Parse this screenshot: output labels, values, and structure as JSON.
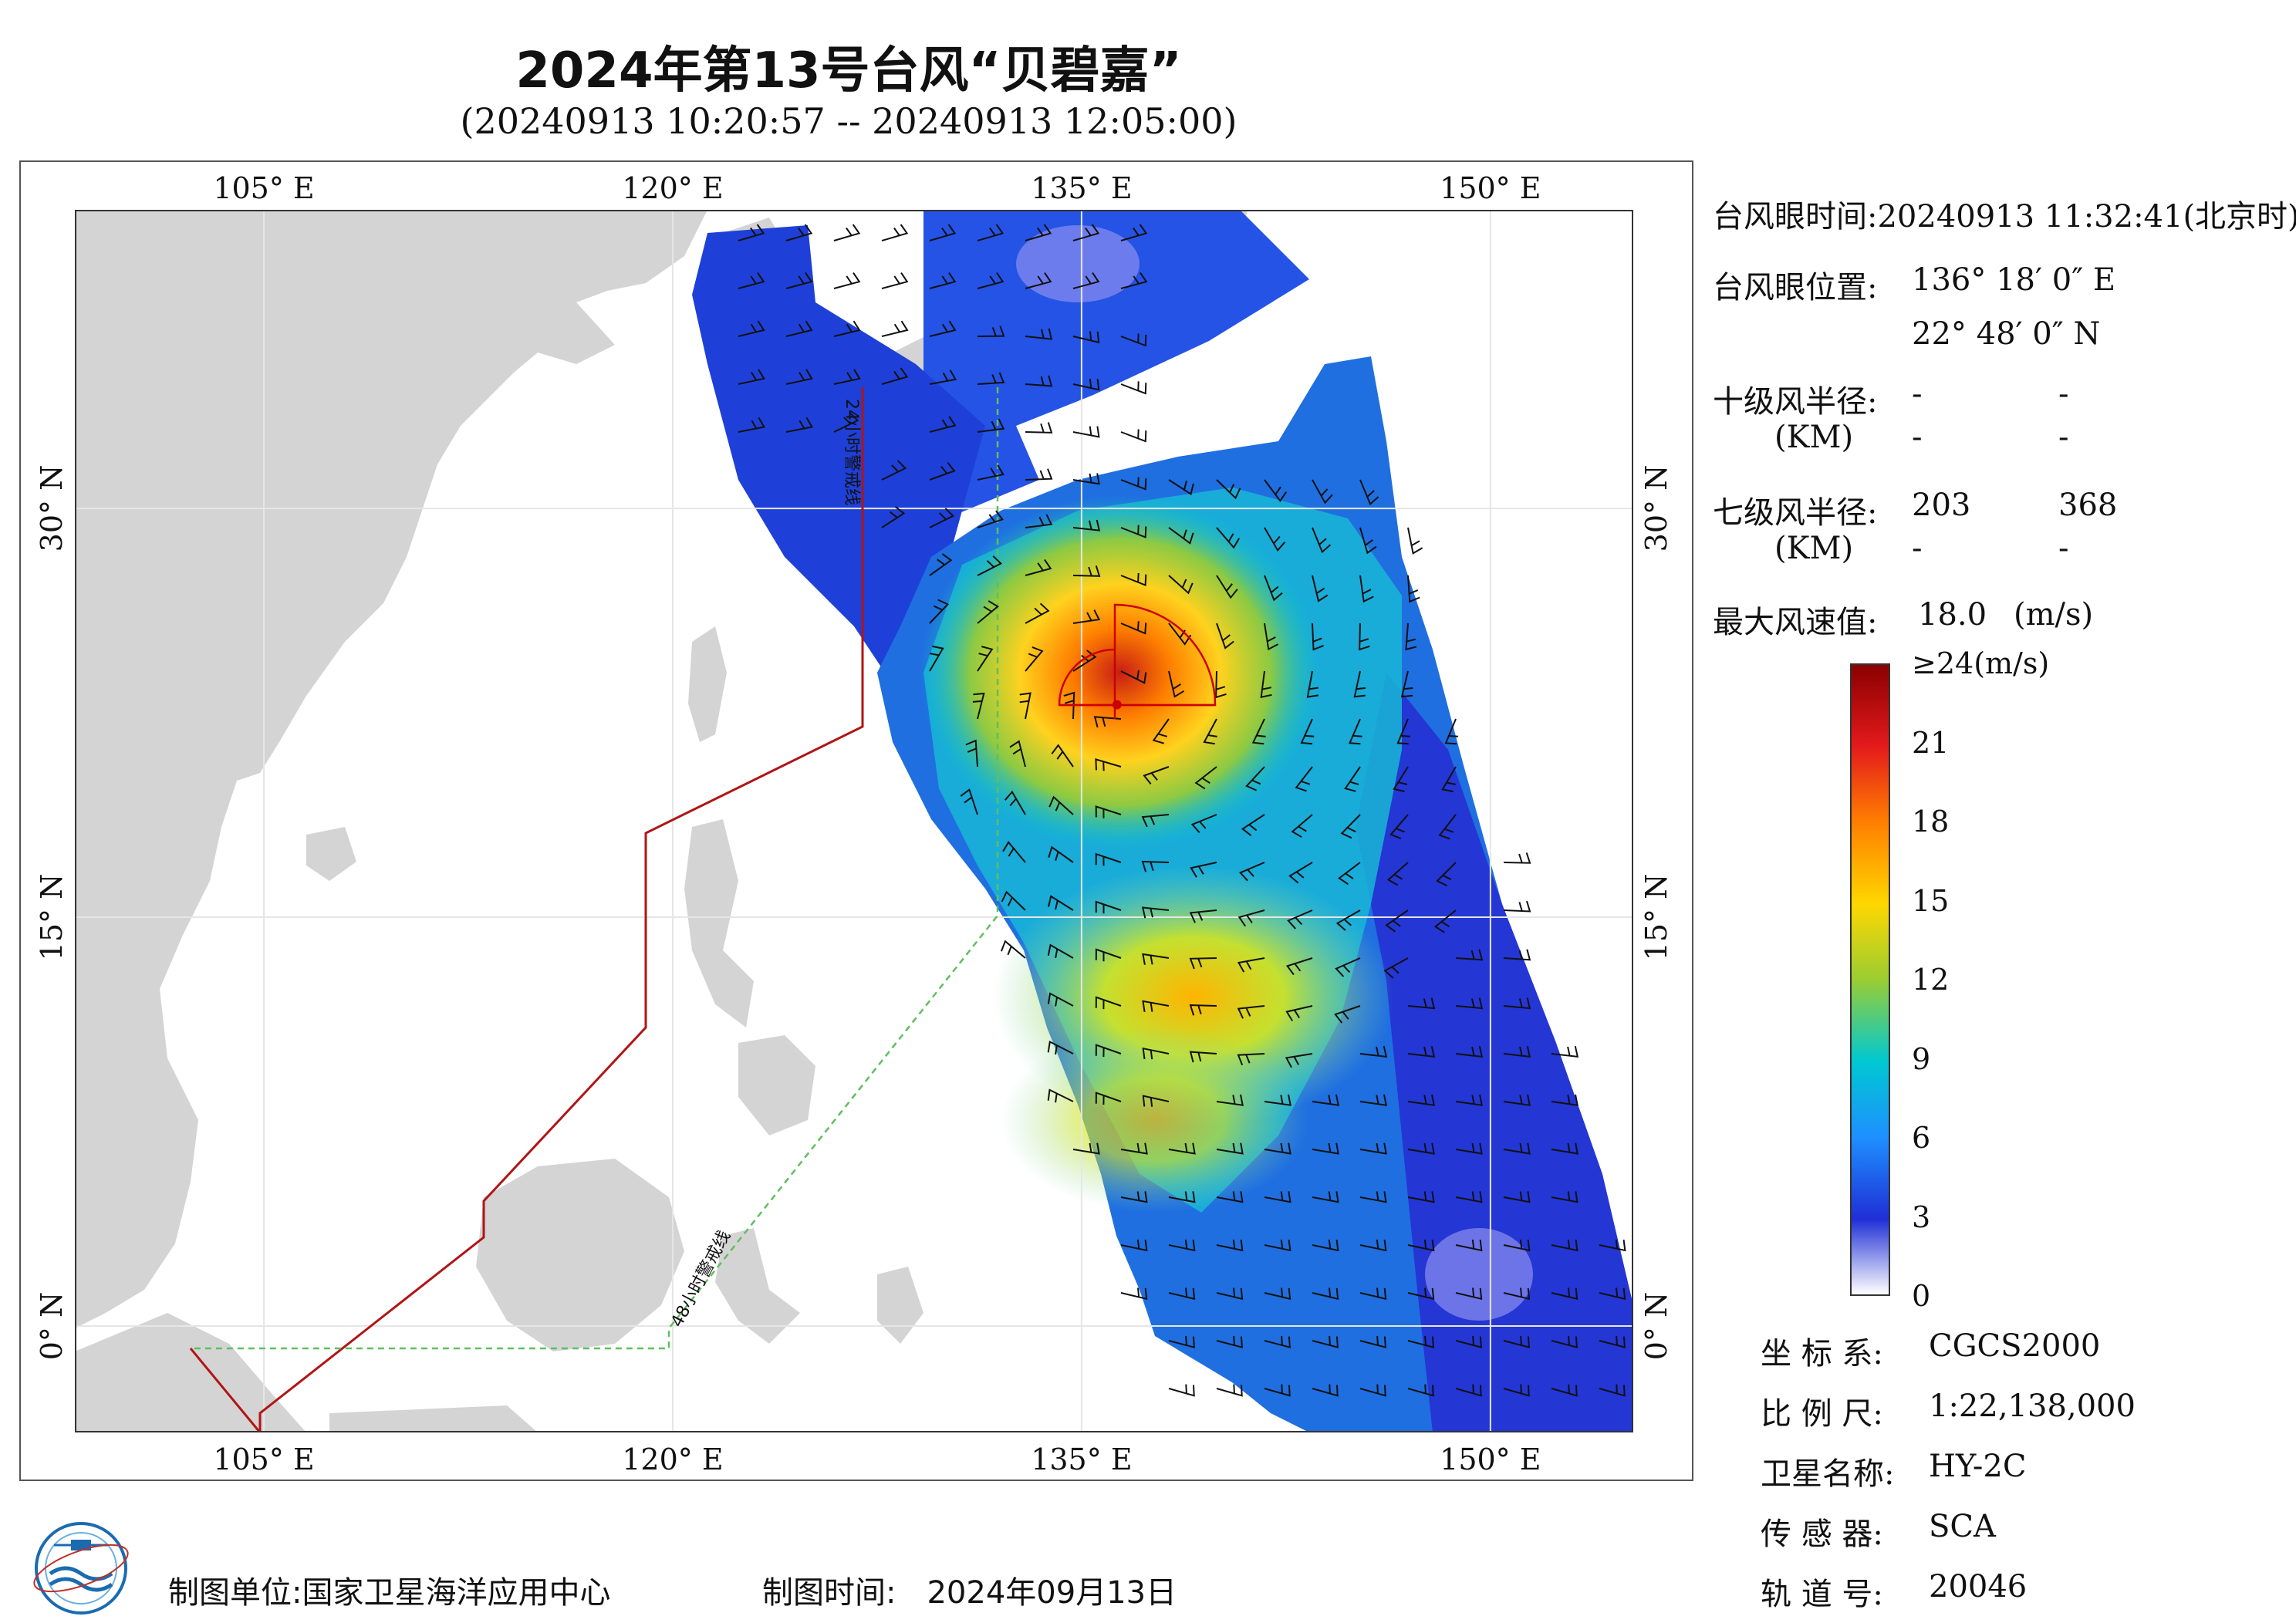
{
  "header": {
    "title": "2024年第13号台风“贝碧嘉”",
    "subtitle": "(20240913 10:20:57 -- 20240913 12:05:00)"
  },
  "map": {
    "lon_ticks": [
      "105° E",
      "120° E",
      "135° E",
      "150° E"
    ],
    "lat_ticks": [
      "30° N",
      "15° N",
      "0° N"
    ],
    "warning_24h_label": "24小时警戒线",
    "warning_48h_label": "48小时警戒线",
    "eye_lon": 136.3,
    "eye_lat": 22.8
  },
  "info": {
    "eye_time_label": "台风眼时间:",
    "eye_time_value": "20240913 11:32:41(北京时)",
    "eye_pos_label": "台风眼位置:",
    "eye_lon": "136° 18′ 0″ E",
    "eye_lat": "22° 48′ 0″ N",
    "r10_label": "十级风半径:",
    "r10_unit": "(KM)",
    "r10_values": [
      "-",
      "-",
      "-",
      "-"
    ],
    "r7_label": "七级风半径:",
    "r7_unit": "(KM)",
    "r7_values": [
      "203",
      "368",
      "-",
      "-"
    ],
    "max_wind_label": "最大风速值:",
    "max_wind_value": "18.0",
    "max_wind_unit": "(m/s)"
  },
  "colorbar": {
    "labels": [
      "≥24(m/s)",
      "21",
      "18",
      "15",
      "12",
      "9",
      "6",
      "3",
      "0"
    ],
    "colors": [
      "#8b0000",
      "#e41a1c",
      "#ff7f00",
      "#ffd700",
      "#9acd32",
      "#00c8d2",
      "#1e90ff",
      "#1f2fd6",
      "#ffffff"
    ]
  },
  "metadata": [
    {
      "label": "坐 标 系:",
      "value": "CGCS2000"
    },
    {
      "label": "比 例 尺:",
      "value": "1:22,138,000"
    },
    {
      "label": "卫星名称:",
      "value": "HY-2C"
    },
    {
      "label": "传 感 器:",
      "value": "SCA"
    },
    {
      "label": "轨 道 号:",
      "value": "20046"
    }
  ],
  "footer": {
    "unit_label": "制图单位:",
    "unit_value": "国家卫星海洋应用中心",
    "time_label": "制图时间:",
    "time_value": "2024年09月13日"
  }
}
